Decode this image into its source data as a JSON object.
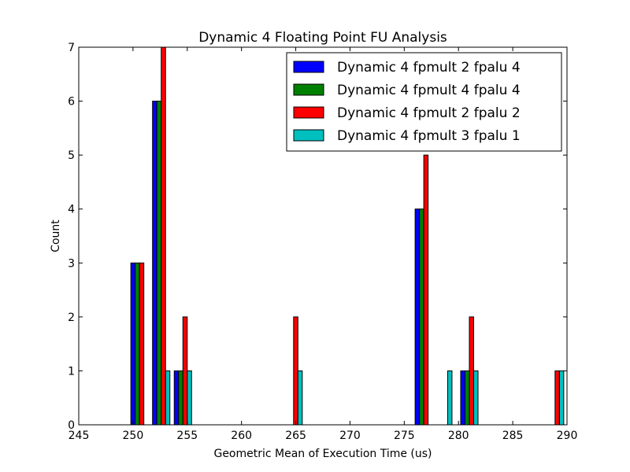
{
  "chart_data": {
    "type": "bar",
    "title": "Dynamic 4 Floating Point FU Analysis",
    "xlabel": "Geometric Mean of Execution Time (us)",
    "ylabel": "Count",
    "xlim": [
      245,
      290
    ],
    "ylim": [
      0,
      7
    ],
    "xticks": [
      "245",
      "250",
      "255",
      "260",
      "265",
      "270",
      "275",
      "280",
      "285",
      "290"
    ],
    "yticks": [
      "0",
      "1",
      "2",
      "3",
      "4",
      "5",
      "6",
      "7"
    ],
    "grid": false,
    "legend_position": "top-right",
    "bar_width": 0.4,
    "series": [
      {
        "name": "Dynamic 4 fpmult 2 fpalu 4",
        "color": "#0000ff",
        "bars": [
          {
            "x": 249.8,
            "value": 3
          },
          {
            "x": 251.8,
            "value": 6
          },
          {
            "x": 253.8,
            "value": 1
          },
          {
            "x": 276.0,
            "value": 4
          },
          {
            "x": 280.2,
            "value": 1
          }
        ]
      },
      {
        "name": "Dynamic 4 fpmult 4 fpalu 4",
        "color": "#008000",
        "bars": [
          {
            "x": 250.2,
            "value": 3
          },
          {
            "x": 252.2,
            "value": 6
          },
          {
            "x": 254.2,
            "value": 1
          },
          {
            "x": 276.4,
            "value": 4
          },
          {
            "x": 280.6,
            "value": 1
          }
        ]
      },
      {
        "name": "Dynamic 4 fpmult 2 fpalu 2",
        "color": "#ff0000",
        "bars": [
          {
            "x": 250.6,
            "value": 3
          },
          {
            "x": 252.6,
            "value": 7
          },
          {
            "x": 254.6,
            "value": 2
          },
          {
            "x": 264.8,
            "value": 2
          },
          {
            "x": 276.8,
            "value": 5
          },
          {
            "x": 281.0,
            "value": 2
          },
          {
            "x": 288.9,
            "value": 1
          }
        ]
      },
      {
        "name": "Dynamic 4 fpmult 3 fpalu 1",
        "color": "#00bfbf",
        "bars": [
          {
            "x": 253.0,
            "value": 1
          },
          {
            "x": 255.0,
            "value": 1
          },
          {
            "x": 265.2,
            "value": 1
          },
          {
            "x": 279.0,
            "value": 1
          },
          {
            "x": 281.4,
            "value": 1
          },
          {
            "x": 289.3,
            "value": 1
          }
        ]
      }
    ]
  }
}
